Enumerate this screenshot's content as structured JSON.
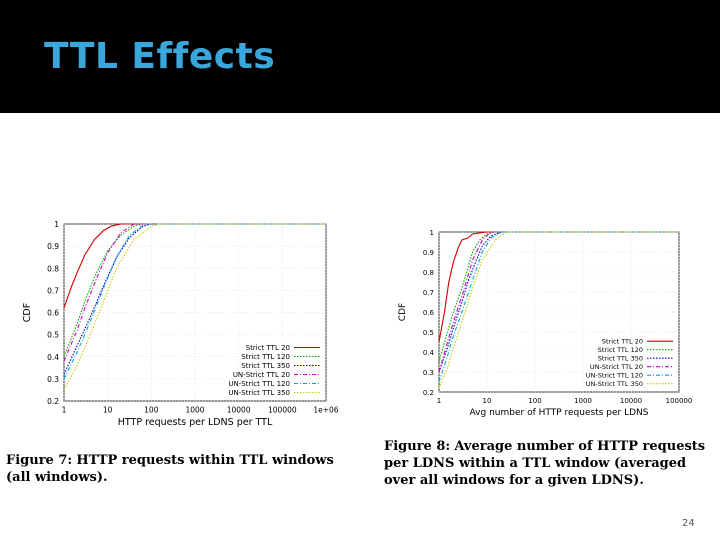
{
  "slide": {
    "title": "TTL Effects",
    "page_number": "24",
    "title_color": "#3aa7dc",
    "header_color": "#000000"
  },
  "captions": {
    "fig7": {
      "label": "Figure 7:",
      "text": "HTTP requests within TTL windows (all windows)."
    },
    "fig8": {
      "label": "Figure 8:",
      "text": "Average number of HTTP requests per LDNS within a TTL window (averaged over all windows for a given LDNS)."
    }
  },
  "chart_data": [
    {
      "type": "line",
      "xscale": "log",
      "xlabel": "HTTP requests per LDNS per TTL",
      "ylabel": "CDF",
      "xlim": [
        1,
        1000000
      ],
      "ylim": [
        0.2,
        1
      ],
      "x_ticks": [
        "1",
        "10",
        "100",
        "1000",
        "10000",
        "100000",
        "1e+06"
      ],
      "y_ticks": [
        "0.2",
        "0.3",
        "0.4",
        "0.5",
        "0.6",
        "0.7",
        "0.8",
        "0.9",
        "1"
      ],
      "legend_position": "bottom-right",
      "grid": true,
      "series": [
        {
          "name": "Strict TTL 20",
          "color": "#cc0000",
          "dash": "solid",
          "x": [
            1,
            1.5,
            2,
            3,
            5,
            8,
            12,
            20
          ],
          "y": [
            0.62,
            0.72,
            0.78,
            0.86,
            0.93,
            0.97,
            0.99,
            1.0
          ]
        },
        {
          "name": "Strict TTL 120",
          "color": "#00aa00",
          "dash": "dotted",
          "x": [
            1,
            2,
            3,
            5,
            10,
            20,
            40,
            60
          ],
          "y": [
            0.4,
            0.55,
            0.65,
            0.76,
            0.88,
            0.95,
            0.99,
            1.0
          ]
        },
        {
          "name": "Strict TTL 350",
          "color": "#0000cc",
          "dash": "dotted",
          "x": [
            1,
            2,
            4,
            8,
            16,
            32,
            64,
            100
          ],
          "y": [
            0.32,
            0.45,
            0.58,
            0.72,
            0.85,
            0.94,
            0.99,
            1.0
          ]
        },
        {
          "name": "UN-Strict TTL 20",
          "color": "#cc00cc",
          "dash": "dashdot",
          "x": [
            1,
            2,
            3,
            6,
            10,
            20,
            40
          ],
          "y": [
            0.38,
            0.52,
            0.62,
            0.77,
            0.87,
            0.96,
            1.0
          ]
        },
        {
          "name": "UN-Strict TTL 120",
          "color": "#00aacc",
          "dash": "dashdot",
          "x": [
            1,
            2,
            4,
            8,
            16,
            32,
            70
          ],
          "y": [
            0.3,
            0.42,
            0.56,
            0.71,
            0.85,
            0.95,
            1.0
          ]
        },
        {
          "name": "UN-Strict TTL 350",
          "color": "#cccc00",
          "dash": "dotted",
          "x": [
            1,
            2,
            4,
            8,
            16,
            40,
            100,
            150
          ],
          "y": [
            0.25,
            0.36,
            0.5,
            0.65,
            0.8,
            0.93,
            0.99,
            1.0
          ]
        }
      ]
    },
    {
      "type": "line",
      "xscale": "log",
      "xlabel": "Avg number of HTTP requests per LDNS",
      "ylabel": "CDF",
      "xlim": [
        1,
        100000
      ],
      "ylim": [
        0.2,
        1
      ],
      "x_ticks": [
        "1",
        "10",
        "100",
        "1000",
        "10000",
        "100000"
      ],
      "y_ticks": [
        "0.2",
        "0.3",
        "0.4",
        "0.5",
        "0.6",
        "0.7",
        "0.8",
        "0.9",
        "1"
      ],
      "legend_position": "bottom-right",
      "grid": true,
      "series": [
        {
          "name": "Strict TTL 20",
          "color": "#cc0000",
          "dash": "solid",
          "x": [
            1,
            1.3,
            1.6,
            2,
            2.5,
            3,
            4,
            5,
            7,
            10
          ],
          "y": [
            0.45,
            0.6,
            0.75,
            0.85,
            0.92,
            0.96,
            0.97,
            0.99,
            0.995,
            1.0
          ]
        },
        {
          "name": "Strict TTL 120",
          "color": "#00aa00",
          "dash": "dotted",
          "x": [
            1,
            1.5,
            2,
            3,
            4,
            5,
            7,
            10,
            15
          ],
          "y": [
            0.35,
            0.5,
            0.6,
            0.72,
            0.82,
            0.9,
            0.96,
            0.99,
            1.0
          ]
        },
        {
          "name": "Strict TTL 350",
          "color": "#0000cc",
          "dash": "dotted",
          "x": [
            1,
            1.5,
            2,
            3,
            4,
            6,
            8,
            12,
            20
          ],
          "y": [
            0.3,
            0.42,
            0.52,
            0.65,
            0.75,
            0.86,
            0.93,
            0.98,
            1.0
          ]
        },
        {
          "name": "UN-Strict TTL 20",
          "color": "#cc00cc",
          "dash": "dashdot",
          "x": [
            1,
            1.5,
            2,
            3,
            4,
            5,
            8,
            12
          ],
          "y": [
            0.3,
            0.45,
            0.55,
            0.68,
            0.78,
            0.86,
            0.96,
            1.0
          ]
        },
        {
          "name": "UN-Strict TTL 120",
          "color": "#00aacc",
          "dash": "dashdot",
          "x": [
            1,
            1.5,
            2,
            3,
            5,
            8,
            12,
            20
          ],
          "y": [
            0.25,
            0.38,
            0.48,
            0.6,
            0.76,
            0.9,
            0.97,
            1.0
          ]
        },
        {
          "name": "UN-Strict TTL 350",
          "color": "#cccc00",
          "dash": "dotted",
          "x": [
            1,
            1.5,
            2,
            3,
            5,
            8,
            15,
            25
          ],
          "y": [
            0.22,
            0.32,
            0.42,
            0.55,
            0.72,
            0.86,
            0.96,
            1.0
          ]
        }
      ]
    }
  ]
}
